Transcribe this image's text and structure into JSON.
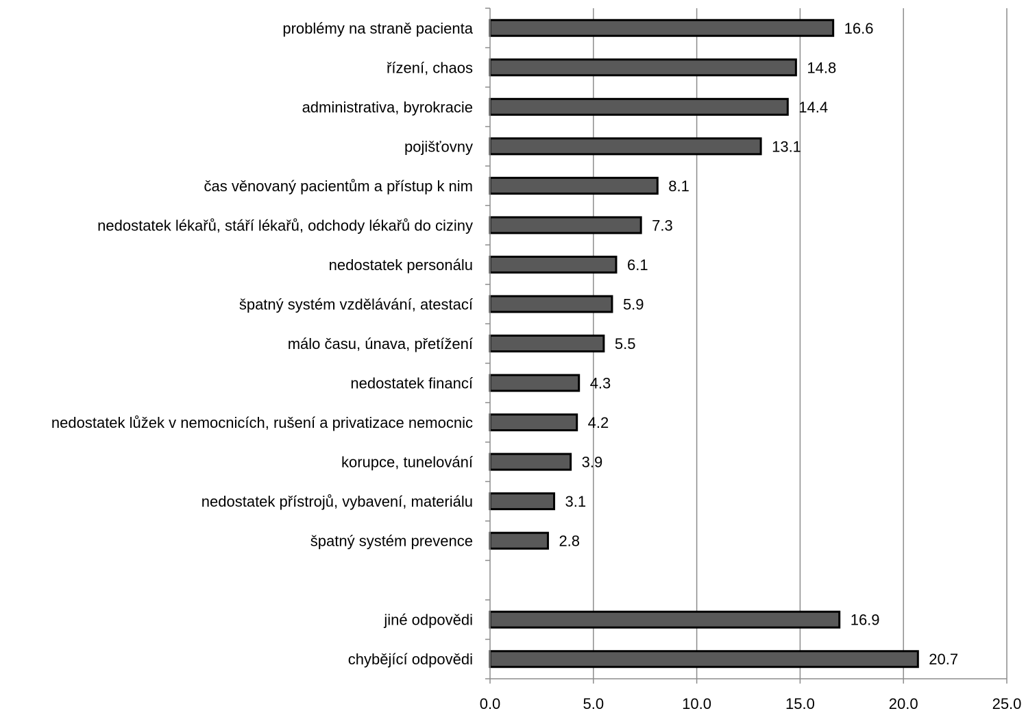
{
  "chart_data": {
    "type": "bar",
    "orientation": "horizontal",
    "categories": [
      "problémy na straně pacienta",
      "řízení, chaos",
      "administrativa, byrokracie",
      "pojišťovny",
      "čas věnovaný pacientům a přístup k nim",
      "nedostatek lékařů, stáří lékařů, odchody lékařů do ciziny",
      "nedostatek personálu",
      "špatný systém vzdělávání, atestací",
      "málo času, únava, přetížení",
      "nedostatek financí",
      "nedostatek lůžek v nemocnicích, rušení a privatizace nemocnic",
      "korupce, tunelování",
      "nedostatek přístrojů, vybavení, materiálu",
      "špatný systém prevence",
      "",
      "jiné odpovědi",
      "chybějící odpovědi"
    ],
    "values": [
      16.6,
      14.8,
      14.4,
      13.1,
      8.1,
      7.3,
      6.1,
      5.9,
      5.5,
      4.3,
      4.2,
      3.9,
      3.1,
      2.8,
      null,
      16.9,
      20.7
    ],
    "value_labels": [
      "16.6",
      "14.8",
      "14.4",
      "13.1",
      "8.1",
      "7.3",
      "6.1",
      "5.9",
      "5.5",
      "4.3",
      "4.2",
      "3.9",
      "3.1",
      "2.8",
      "",
      "16.9",
      "20.7"
    ],
    "x_ticks": [
      "0.0",
      "5.0",
      "10.0",
      "15.0",
      "20.0",
      "25.0"
    ],
    "xlim": [
      0,
      25
    ],
    "title": "",
    "xlabel": "",
    "ylabel": "",
    "grid": "vertical",
    "legend": "none",
    "colors": {
      "bar_fill": "#595959",
      "bar_stroke": "#000000",
      "grid": "#8c8c8c"
    }
  }
}
